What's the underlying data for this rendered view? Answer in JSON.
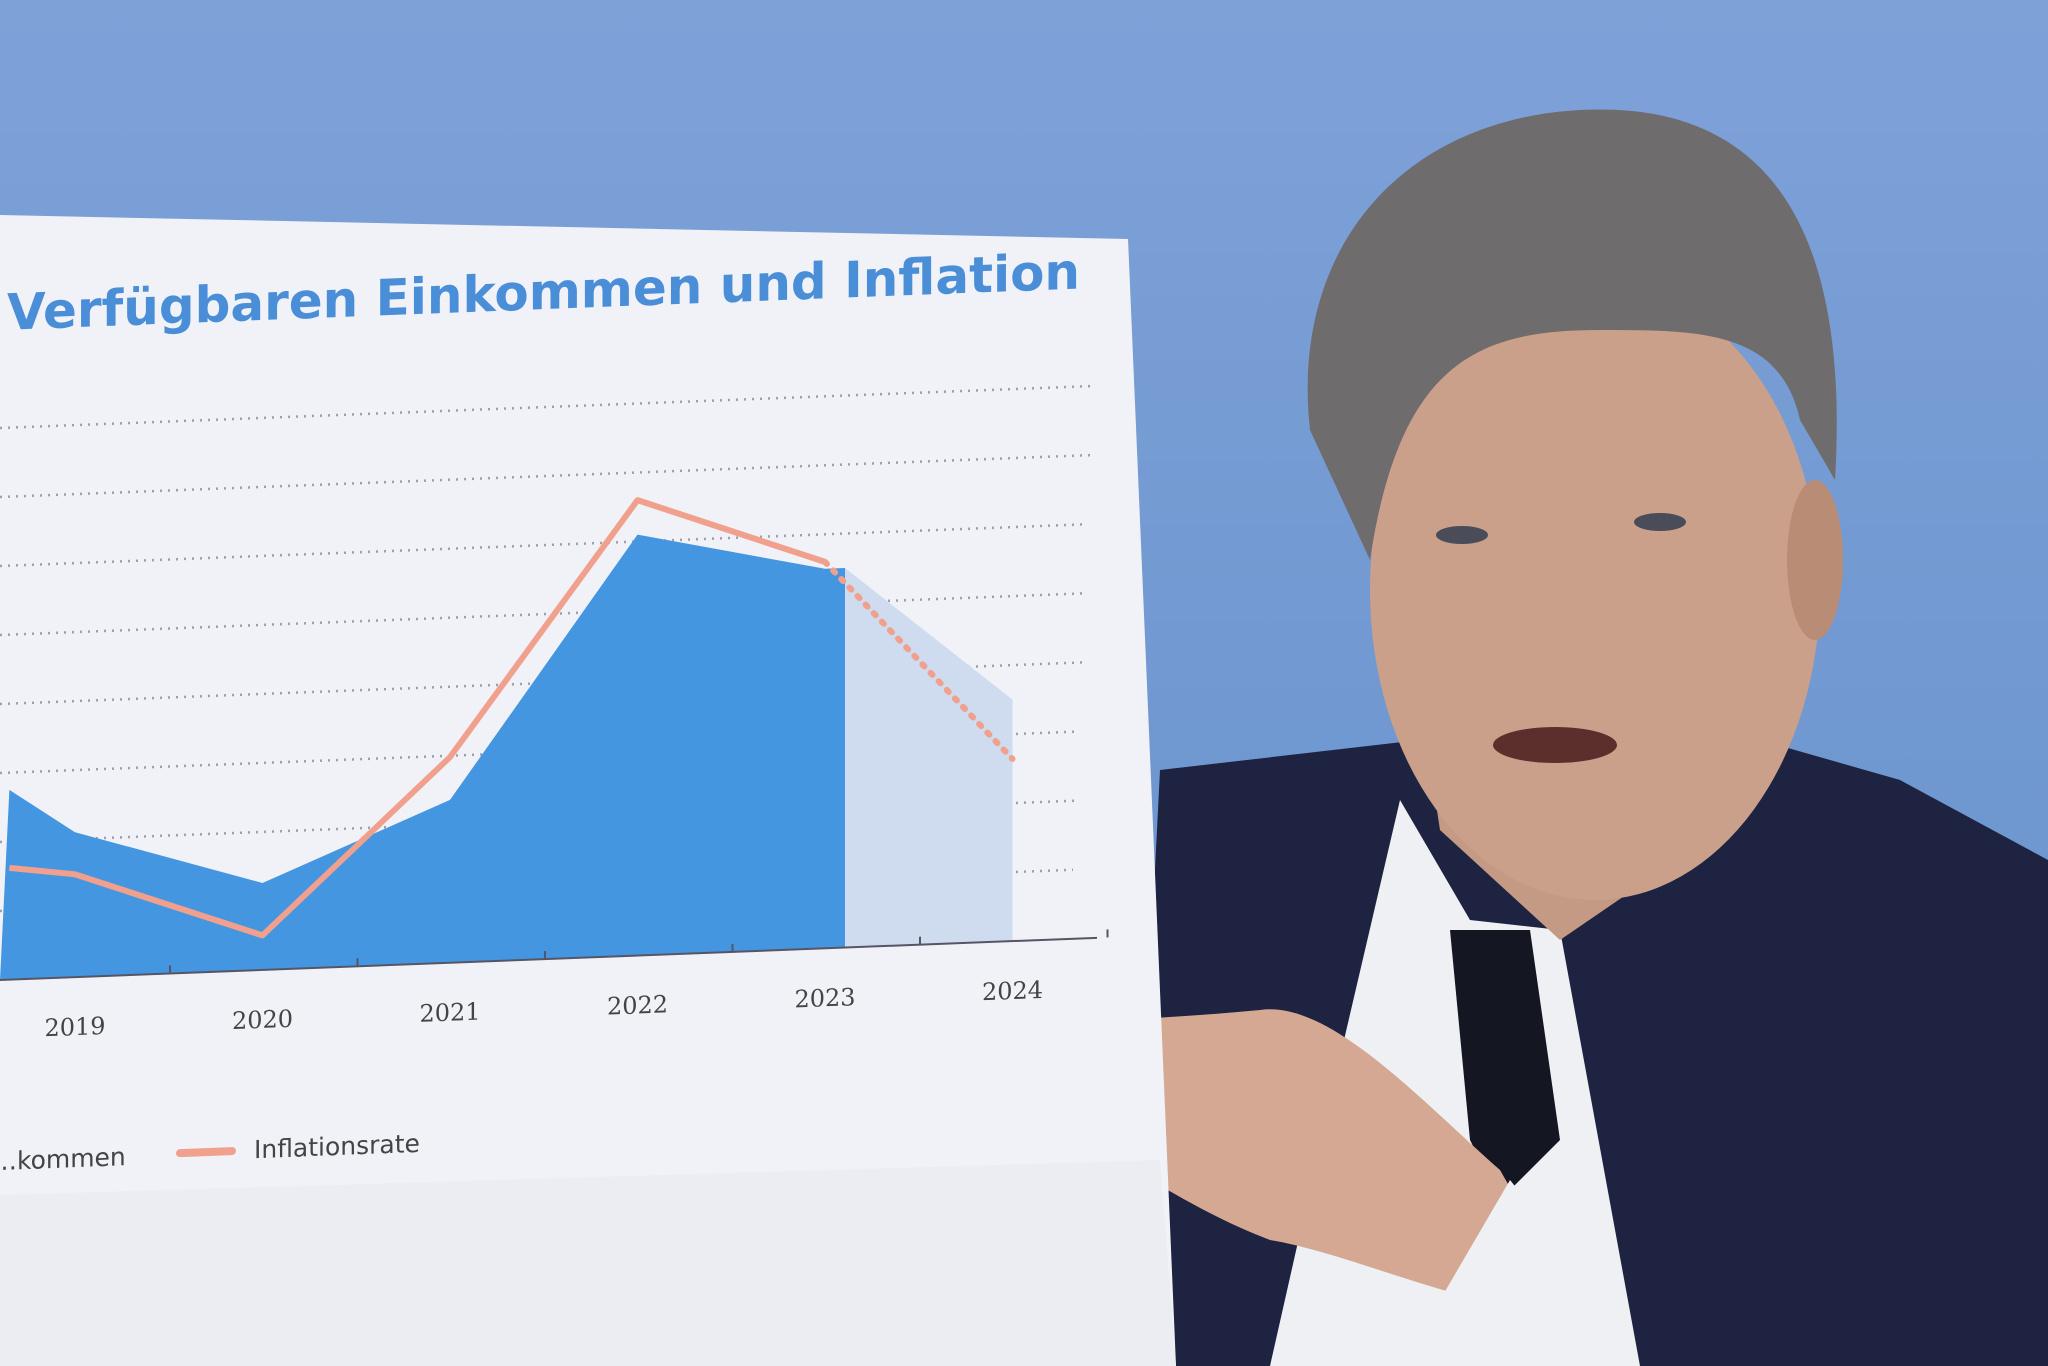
{
  "chart_data": {
    "type": "area",
    "title": "Verfügbaren Einkommen und Inflation",
    "categories": [
      "2019",
      "2020",
      "2021",
      "2022",
      "2023",
      "2024"
    ],
    "ylim": [
      0,
      8
    ],
    "grid": true,
    "legend_placement": "bottom",
    "series": [
      {
        "name": "…kommen",
        "kind": "area",
        "color": "#4596e0",
        "forecast_color": "#cfdcf0",
        "x": [
          2018.65,
          2019,
          2020,
          2021,
          2022,
          2023,
          2024
        ],
        "values": [
          2.75,
          2.1,
          1.26,
          2.36,
          6.1,
          5.5,
          3.5
        ],
        "forecast_from": 2023
      },
      {
        "name": "Inflationsrate",
        "kind": "line",
        "color": "#f0a08c",
        "x": [
          2018.65,
          2019,
          2020,
          2021,
          2022,
          2023,
          2024
        ],
        "values": [
          1.62,
          1.49,
          0.5,
          2.98,
          6.6,
          5.6,
          2.64
        ],
        "dotted_from": 2023
      }
    ]
  },
  "colors": {
    "background": "#7ea1d8",
    "board": "#f1f2f7",
    "suit": "#1d2340"
  }
}
